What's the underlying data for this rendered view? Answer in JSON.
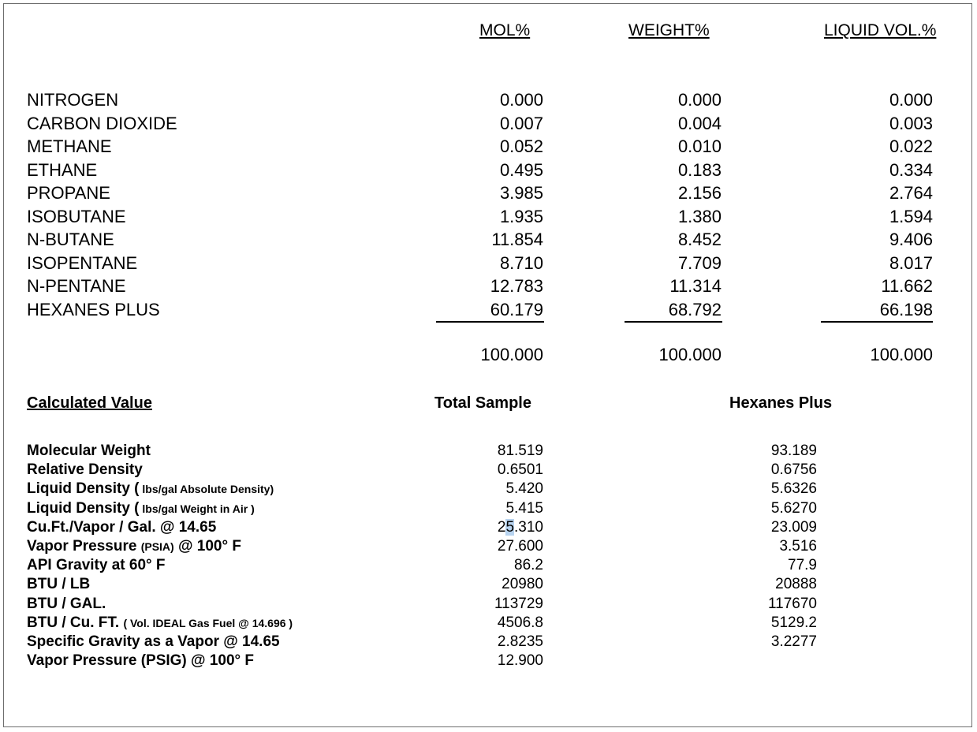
{
  "headers": {
    "mol": "MOL%",
    "weight": "WEIGHT%",
    "liquid": "LIQUID VOL.%"
  },
  "components": [
    {
      "name": "NITROGEN",
      "mol": "0.000",
      "weight": "0.000",
      "liquid": "0.000"
    },
    {
      "name": "CARBON DIOXIDE",
      "mol": "0.007",
      "weight": "0.004",
      "liquid": "0.003"
    },
    {
      "name": "METHANE",
      "mol": "0.052",
      "weight": "0.010",
      "liquid": "0.022"
    },
    {
      "name": "ETHANE",
      "mol": "0.495",
      "weight": "0.183",
      "liquid": "0.334"
    },
    {
      "name": "PROPANE",
      "mol": "3.985",
      "weight": "2.156",
      "liquid": "2.764"
    },
    {
      "name": "ISOBUTANE",
      "mol": "1.935",
      "weight": "1.380",
      "liquid": "1.594"
    },
    {
      "name": "N-BUTANE",
      "mol": "11.854",
      "weight": "8.452",
      "liquid": "9.406"
    },
    {
      "name": "ISOPENTANE",
      "mol": "8.710",
      "weight": "7.709",
      "liquid": "8.017"
    },
    {
      "name": "N-PENTANE",
      "mol": "12.783",
      "weight": "11.314",
      "liquid": "11.662"
    },
    {
      "name": "HEXANES PLUS",
      "mol": "60.179",
      "weight": "68.792",
      "liquid": "66.198"
    }
  ],
  "totals": {
    "mol": "100.000",
    "weight": "100.000",
    "liquid": "100.000"
  },
  "calc": {
    "section_label": "Calculated Value",
    "total_sample_label": "Total Sample",
    "hexanes_plus_label": "Hexanes Plus",
    "rows": [
      {
        "label": "Molecular Weight",
        "note": "",
        "suffix": "",
        "total": "81.519",
        "hexanes": "93.189"
      },
      {
        "label": "Relative Density",
        "note": "",
        "suffix": "",
        "total": "0.6501",
        "hexanes": "0.6756"
      },
      {
        "label": "Liquid Density (",
        "note": " lbs/gal Absolute Density)",
        "suffix": "",
        "total": "5.420",
        "hexanes": "5.6326"
      },
      {
        "label": "Liquid Density (",
        "note": " lbs/gal Weight in Air )",
        "suffix": "",
        "total": "5.415",
        "hexanes": "5.6270"
      },
      {
        "label": "Cu.Ft./Vapor / Gal. @ 14.65",
        "note": "",
        "suffix": "",
        "total": "25.310",
        "hexanes": "23.009"
      },
      {
        "label": "Vapor Pressure ",
        "note": "(PSIA)",
        "suffix": " @ 100° F",
        "total": "27.600",
        "hexanes": "3.516"
      },
      {
        "label": "API Gravity at 60° F",
        "note": "",
        "suffix": "",
        "total": "86.2",
        "hexanes": "77.9"
      },
      {
        "label": "BTU / LB",
        "note": "",
        "suffix": "",
        "total": "20980",
        "hexanes": "20888"
      },
      {
        "label": "BTU / GAL.",
        "note": "",
        "suffix": "",
        "total": "113729",
        "hexanes": "117670"
      },
      {
        "label": "BTU / Cu. FT. ",
        "note": "( Vol. IDEAL Gas Fuel @ 14.696 )",
        "suffix": "",
        "total": "4506.8",
        "hexanes": "5129.2"
      },
      {
        "label": "Specific Gravity as a Vapor @ 14.65",
        "note": "",
        "suffix": "",
        "total": "2.8235",
        "hexanes": "3.2277"
      },
      {
        "label": "Vapor Pressure (PSIG) @ 100° F",
        "note": "",
        "suffix": "",
        "total": "12.900",
        "hexanes": ""
      }
    ]
  }
}
